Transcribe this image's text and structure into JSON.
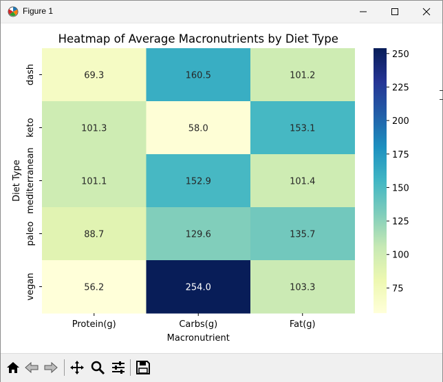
{
  "window": {
    "title": "Figure 1",
    "controls": [
      "minimize",
      "maximize",
      "close"
    ]
  },
  "toolbar": {
    "buttons": [
      "home-icon",
      "back-arrow-icon",
      "forward-arrow-icon",
      "pan-move-icon",
      "zoom-magnifier-icon",
      "configure-subplots-icon",
      "save-floppy-icon"
    ]
  },
  "chart_data": {
    "type": "heatmap",
    "title": "Heatmap of Average Macronutrients by Diet Type",
    "xlabel": "Macronutrient",
    "ylabel": "Diet Type",
    "x_categories": [
      "Protein(g)",
      "Carbs(g)",
      "Fat(g)"
    ],
    "y_categories": [
      "dash",
      "keto",
      "mediterranean",
      "paleo",
      "vegan"
    ],
    "values": [
      [
        69.3,
        160.5,
        101.2
      ],
      [
        101.3,
        58.0,
        153.1
      ],
      [
        101.1,
        152.9,
        101.4
      ],
      [
        88.7,
        129.6,
        135.7
      ],
      [
        56.2,
        254.0,
        103.3
      ]
    ],
    "value_format": "0.1f",
    "colormap": "YlGnBu",
    "colorbar": {
      "range": [
        56.2,
        254.0
      ],
      "ticks": [
        75,
        100,
        125,
        150,
        175,
        200,
        225,
        250
      ]
    }
  }
}
